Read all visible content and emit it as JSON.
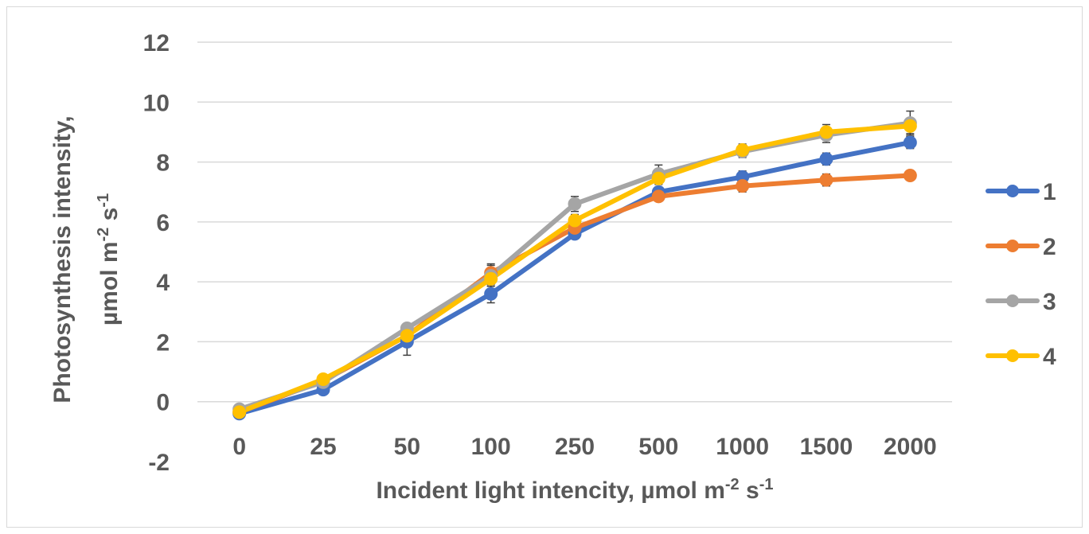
{
  "chart_data": {
    "type": "line",
    "title": "",
    "xlabel": {
      "text": "Incident light intencity, µmol m",
      "sup1": "-2",
      "mid": " s",
      "sup2": "-1"
    },
    "ylabel": {
      "line1": "Photosynthesis intensity,",
      "line2_text": "µmol m",
      "line2_sup1": "-2",
      "line2_mid": " s",
      "line2_sup2": "-1"
    },
    "categories": [
      "0",
      "25",
      "50",
      "100",
      "250",
      "500",
      "1000",
      "1500",
      "2000"
    ],
    "ylim": [
      -2,
      12
    ],
    "yticks": [
      "-2",
      "0",
      "2",
      "4",
      "6",
      "8",
      "10",
      "12"
    ],
    "grid": true,
    "legend_position": "right",
    "series": [
      {
        "name": "1",
        "color": "#4472c4",
        "values": [
          -0.4,
          0.4,
          2.0,
          3.6,
          5.6,
          7.0,
          7.5,
          8.1,
          8.65
        ],
        "errors": [
          0.1,
          0.1,
          0.45,
          0.3,
          0.15,
          0.15,
          0.2,
          0.2,
          0.2
        ]
      },
      {
        "name": "2",
        "color": "#ed7d31",
        "values": [
          -0.35,
          0.7,
          2.2,
          4.3,
          5.8,
          6.85,
          7.2,
          7.4,
          7.55
        ],
        "errors": [
          0.1,
          0.1,
          0.15,
          0.3,
          0.15,
          0.15,
          0.2,
          0.2,
          0.15
        ]
      },
      {
        "name": "3",
        "color": "#a5a5a5",
        "values": [
          -0.25,
          0.65,
          2.45,
          4.2,
          6.6,
          7.6,
          8.35,
          8.9,
          9.3
        ],
        "errors": [
          0.1,
          0.1,
          0.15,
          0.35,
          0.25,
          0.3,
          0.2,
          0.25,
          0.4
        ]
      },
      {
        "name": "4",
        "color": "#ffc000",
        "values": [
          -0.35,
          0.75,
          2.2,
          4.1,
          6.05,
          7.45,
          8.4,
          9.0,
          9.2
        ],
        "errors": [
          0.1,
          0.1,
          0.15,
          0.35,
          0.2,
          0.2,
          0.2,
          0.25,
          0.25
        ]
      }
    ]
  }
}
